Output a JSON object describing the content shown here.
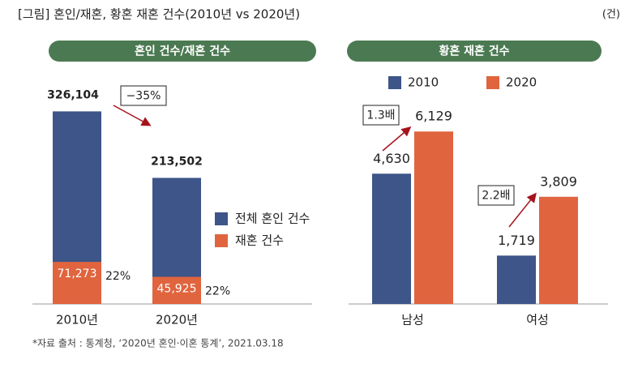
{
  "title": "[그림] 혼인/재혼, 황혼 재혼 건수(2010년 vs 2020년)",
  "unit": "(건)",
  "source": "*자료 출처 : 통계청, ‘2020년 혼인·이혼 통계’, 2021.03.18",
  "chart_data": [
    {
      "type": "bar",
      "mode": "overlap",
      "title": "혼인 건수/재혼 건수",
      "categories": [
        "2010년",
        "2020년"
      ],
      "series": [
        {
          "name": "전체 혼인 건수",
          "color": "#3d5588",
          "values": [
            326104,
            213502
          ],
          "value_labels": [
            "326,104",
            "213,502"
          ]
        },
        {
          "name": "재혼 건수",
          "color": "#e0643e",
          "values": [
            71273,
            45925
          ],
          "value_labels": [
            "71,273",
            "45,925"
          ],
          "share_labels": [
            "22%",
            "22%"
          ]
        }
      ],
      "ylim": [
        0,
        350000
      ],
      "legend": "right",
      "annotations": [
        "−35%"
      ]
    },
    {
      "type": "bar",
      "mode": "group",
      "title": "황혼 재혼 건수",
      "categories": [
        "남성",
        "여성"
      ],
      "series": [
        {
          "name": "2010",
          "color": "#3d5588",
          "values": [
            4630,
            1719
          ],
          "value_labels": [
            "4,630",
            "1,719"
          ]
        },
        {
          "name": "2020",
          "color": "#e0643e",
          "values": [
            6129,
            3809
          ],
          "value_labels": [
            "6,129",
            "3,809"
          ]
        }
      ],
      "ylim": [
        0,
        7000
      ],
      "legend": "top",
      "annotations": [
        "1.3배",
        "2.2배"
      ]
    }
  ]
}
